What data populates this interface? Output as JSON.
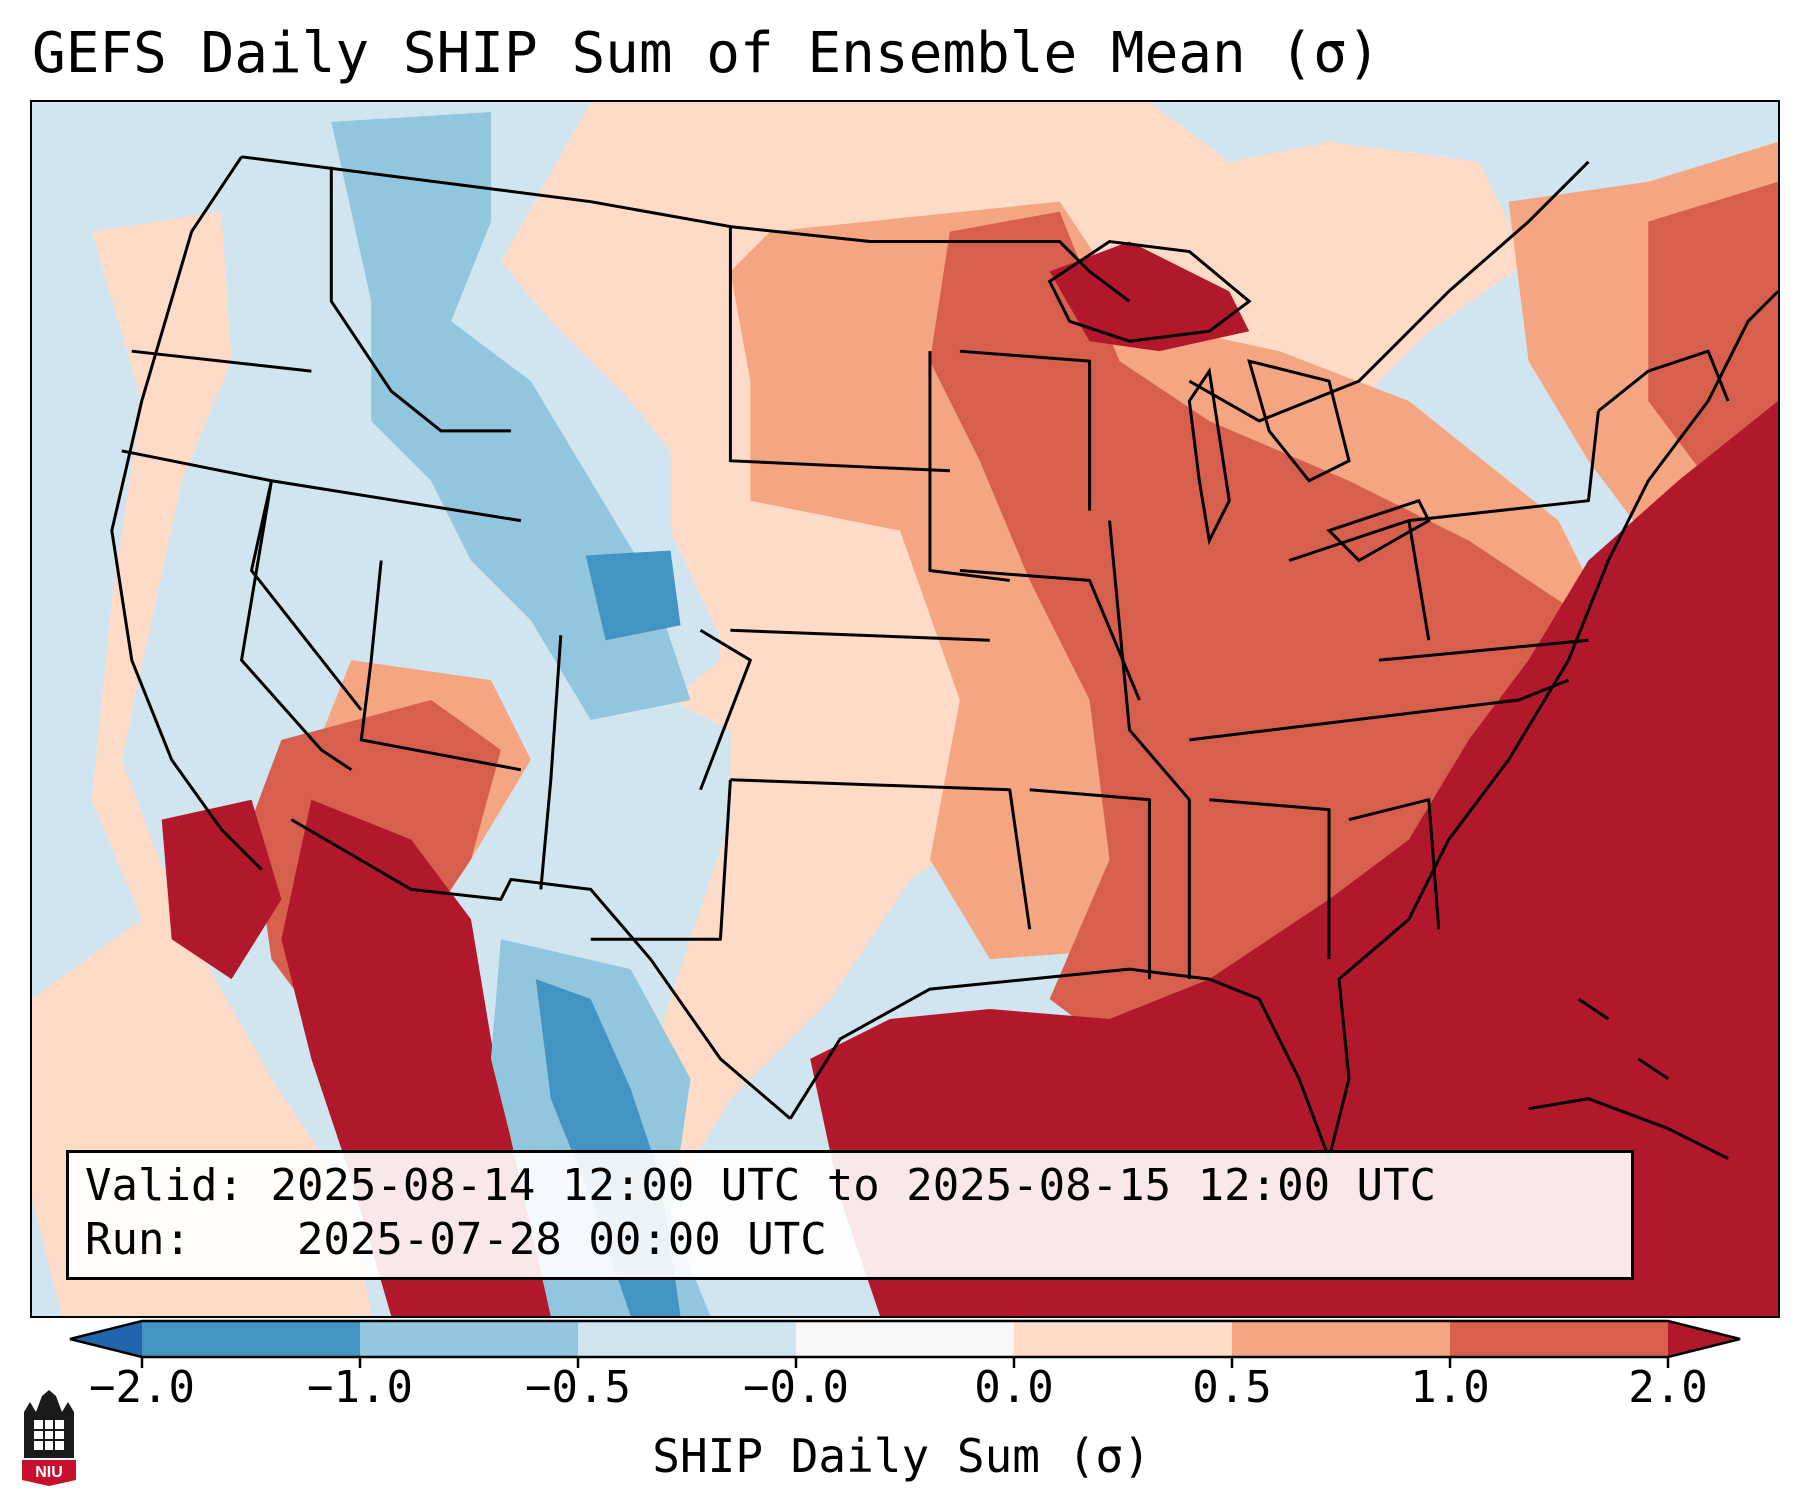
{
  "title": "GEFS Daily SHIP Sum of Ensemble Mean (σ)",
  "validity": {
    "valid_label": "Valid:",
    "valid_value": "2025-08-14 12:00 UTC to 2025-08-15 12:00 UTC",
    "run_label": "Run:",
    "run_value": "2025-07-28 00:00 UTC"
  },
  "colorbar": {
    "label": "SHIP Daily Sum (σ)",
    "ticks": [
      "−2.0",
      "−1.0",
      "−0.5",
      "−0.0",
      "0.0",
      "0.5",
      "1.0",
      "2.0"
    ],
    "bins": [
      {
        "range": "< -2.0",
        "color": "#2166ac"
      },
      {
        "range": "-2.0 to -1.0",
        "color": "#4393c3"
      },
      {
        "range": "-1.0 to -0.5",
        "color": "#92c5de"
      },
      {
        "range": "-0.5 to -0.0",
        "color": "#d1e5f0"
      },
      {
        "range": "-0.0 to 0.0",
        "color": "#f7f7f7"
      },
      {
        "range": "0.0 to 0.5",
        "color": "#fddbc7"
      },
      {
        "range": "0.5 to 1.0",
        "color": "#f4a582"
      },
      {
        "range": "1.0 to 2.0",
        "color": "#d6604d"
      },
      {
        "range": "> 2.0",
        "color": "#b2182b"
      }
    ]
  },
  "logo": {
    "text": "NIU",
    "color": "#c8102e"
  }
}
